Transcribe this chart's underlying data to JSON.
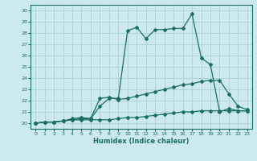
{
  "xlabel": "Humidex (Indice chaleur)",
  "ylabel": "",
  "xlim": [
    -0.5,
    23.5
  ],
  "ylim": [
    19.5,
    30.5
  ],
  "xticks": [
    0,
    1,
    2,
    3,
    4,
    5,
    6,
    7,
    8,
    9,
    10,
    11,
    12,
    13,
    14,
    15,
    16,
    17,
    18,
    19,
    20,
    21,
    22,
    23
  ],
  "yticks": [
    20,
    21,
    22,
    23,
    24,
    25,
    26,
    27,
    28,
    29,
    30
  ],
  "bg_color": "#cce9ef",
  "grid_color": "#aacfd8",
  "line_color": "#1a6e64",
  "lines": [
    {
      "x": [
        0,
        1,
        2,
        3,
        4,
        5,
        6,
        7,
        8,
        9,
        10,
        11,
        12,
        13,
        14,
        15,
        16,
        17,
        18,
        19,
        20,
        21,
        22,
        23
      ],
      "y": [
        20.0,
        20.1,
        20.1,
        20.2,
        20.3,
        20.3,
        20.3,
        20.3,
        20.3,
        20.4,
        20.5,
        20.5,
        20.6,
        20.7,
        20.8,
        20.9,
        21.0,
        21.0,
        21.1,
        21.1,
        21.1,
        21.1,
        21.1,
        21.1
      ]
    },
    {
      "x": [
        0,
        1,
        2,
        3,
        4,
        5,
        6,
        7,
        8,
        9,
        10,
        11,
        12,
        13,
        14,
        15,
        16,
        17,
        18,
        19,
        20,
        21,
        22,
        23
      ],
      "y": [
        20.0,
        20.1,
        20.1,
        20.2,
        20.3,
        20.4,
        20.4,
        21.5,
        22.2,
        22.2,
        28.2,
        28.5,
        27.5,
        28.3,
        28.3,
        28.4,
        28.4,
        29.7,
        25.8,
        25.2,
        21.0,
        21.3,
        21.1,
        21.1
      ]
    },
    {
      "x": [
        0,
        1,
        2,
        3,
        4,
        5,
        6,
        7,
        8,
        9,
        10,
        11,
        12,
        13,
        14,
        15,
        16,
        17,
        18,
        19,
        20,
        21,
        22,
        23
      ],
      "y": [
        20.0,
        20.1,
        20.1,
        20.2,
        20.4,
        20.5,
        20.4,
        22.2,
        22.3,
        22.1,
        22.2,
        22.4,
        22.6,
        22.8,
        23.0,
        23.2,
        23.4,
        23.5,
        23.7,
        23.8,
        23.8,
        22.6,
        21.5,
        21.2
      ]
    }
  ],
  "marker": "D",
  "markersize": 2.0,
  "linewidth": 0.9
}
